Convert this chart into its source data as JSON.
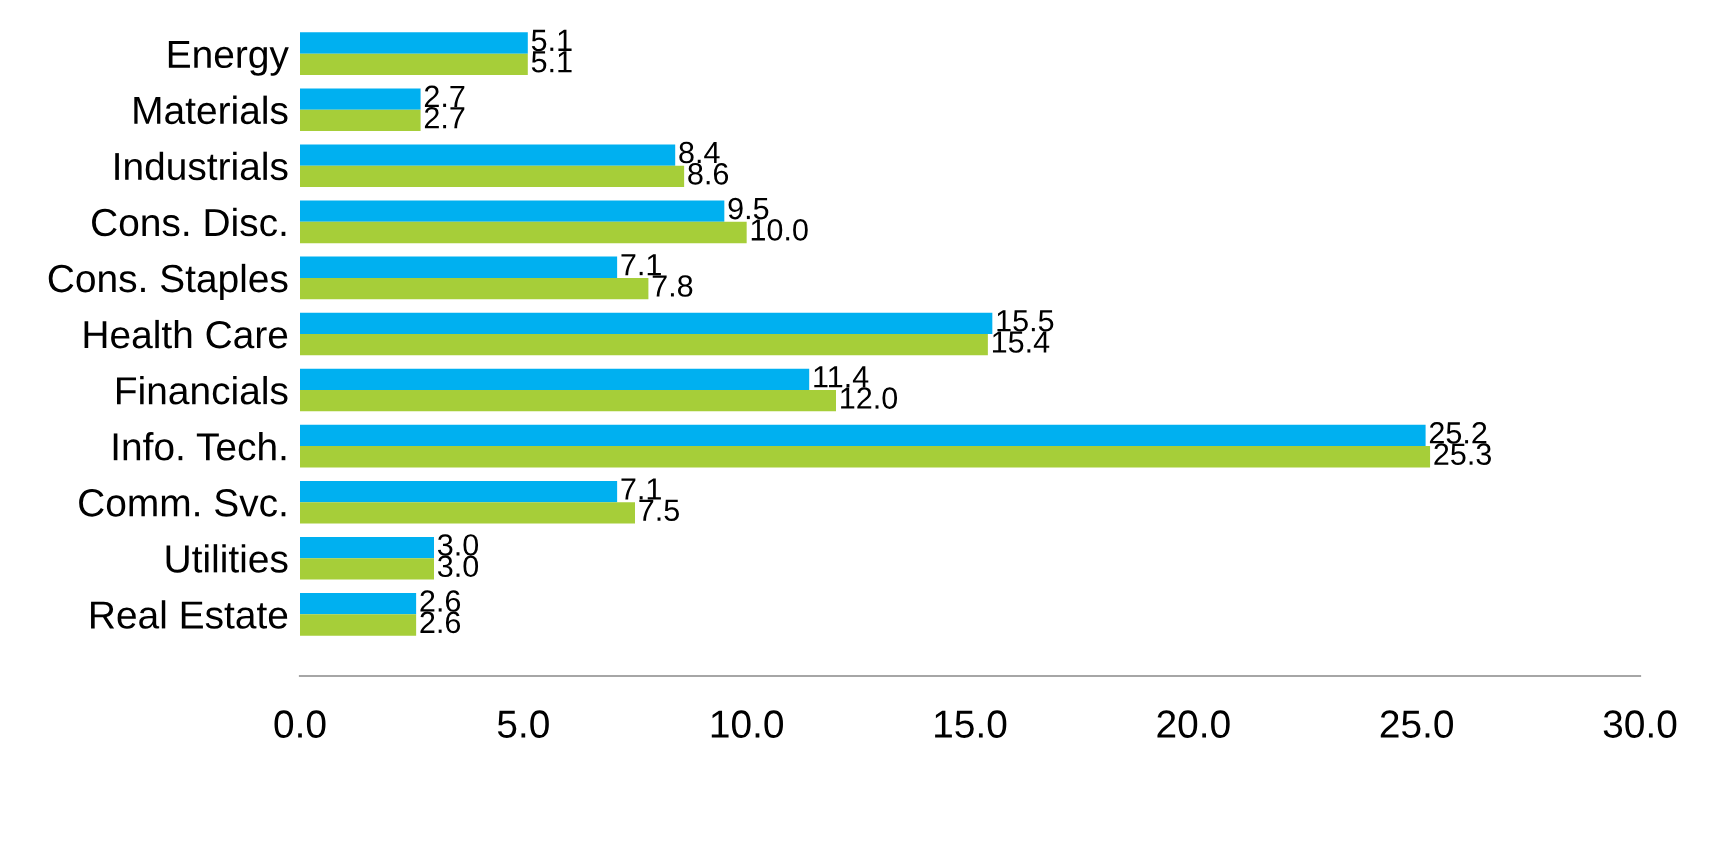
{
  "chart_data": {
    "type": "bar",
    "orientation": "horizontal",
    "categories": [
      "Energy",
      "Materials",
      "Industrials",
      "Cons. Disc.",
      "Cons. Staples",
      "Health Care",
      "Financials",
      "Info. Tech.",
      "Comm. Svc.",
      "Utilities",
      "Real Estate"
    ],
    "series": [
      {
        "color": "#00b0f0",
        "values": [
          5.1,
          2.7,
          8.4,
          9.5,
          7.1,
          15.5,
          11.4,
          25.2,
          7.1,
          3.0,
          2.6
        ],
        "value_labels": [
          "5.1",
          "2.7",
          "8.4",
          "9.5",
          "7.1",
          "15.5",
          "11.4",
          "25.2",
          "7.1",
          "3.0",
          "2.6"
        ]
      },
      {
        "color": "#a6ce39",
        "values": [
          5.1,
          2.7,
          8.6,
          10.0,
          7.8,
          15.4,
          12.0,
          25.3,
          7.5,
          3.0,
          2.6
        ],
        "value_labels": [
          "5.1",
          "2.7",
          "8.6",
          "10.0",
          "7.8",
          "15.4",
          "12.0",
          "25.3",
          "7.5",
          "3.0",
          "2.6"
        ]
      }
    ],
    "xlim": [
      0,
      30
    ],
    "xticks": [
      {
        "value": 0,
        "label": "0.0"
      },
      {
        "value": 5,
        "label": "5.0"
      },
      {
        "value": 10,
        "label": "10.0"
      },
      {
        "value": 15,
        "label": "15.0"
      },
      {
        "value": 20,
        "label": "20.0"
      },
      {
        "value": 25,
        "label": "25.0"
      },
      {
        "value": 30,
        "label": "30.0"
      }
    ],
    "grid": false
  }
}
